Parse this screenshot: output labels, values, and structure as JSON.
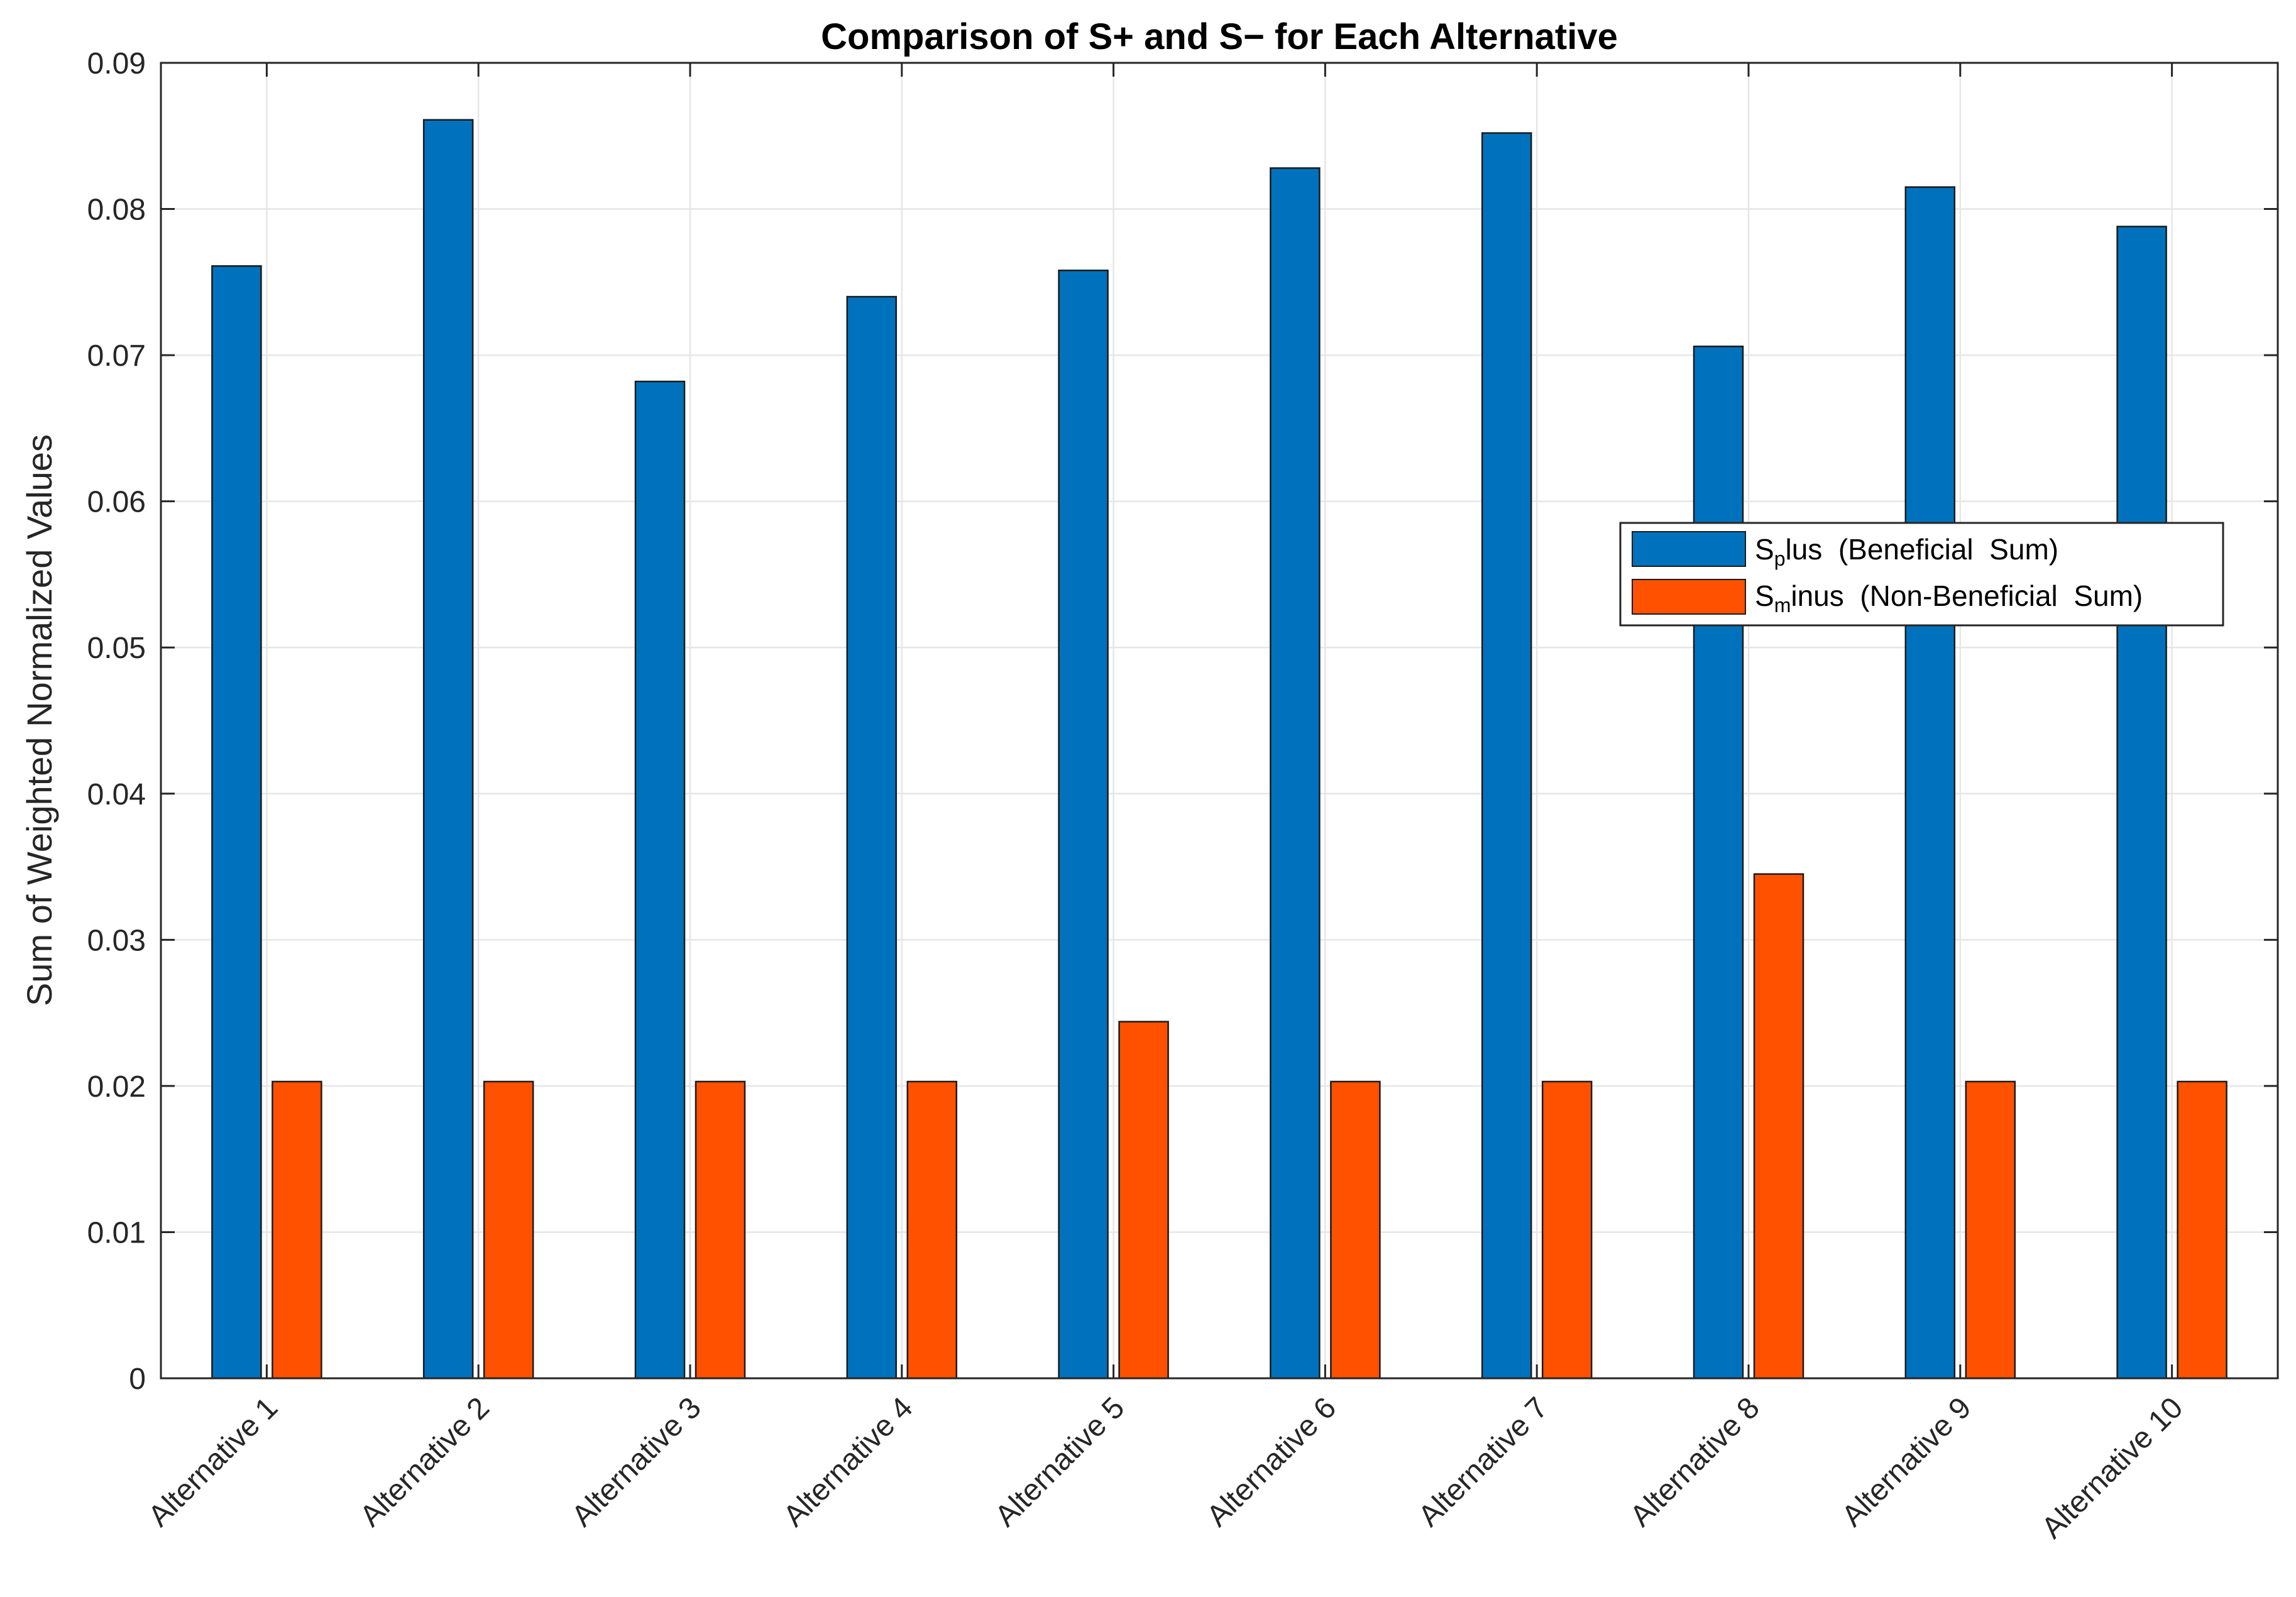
{
  "chart_data": {
    "type": "bar",
    "title": "Comparison of S+ and S− for Each Alternative",
    "xlabel": "",
    "ylabel": "Sum of Weighted Normalized Values",
    "ylim": [
      0,
      0.09
    ],
    "yticks": [
      "0",
      "0.01",
      "0.02",
      "0.03",
      "0.04",
      "0.05",
      "0.06",
      "0.07",
      "0.08",
      "0.09"
    ],
    "ytick_values": [
      0,
      0.01,
      0.02,
      0.03,
      0.04,
      0.05,
      0.06,
      0.07,
      0.08,
      0.09
    ],
    "grid": true,
    "categories": [
      "Alternative 1",
      "Alternative 2",
      "Alternative 3",
      "Alternative 4",
      "Alternative 5",
      "Alternative 6",
      "Alternative 7",
      "Alternative 8",
      "Alternative 9",
      "Alternative 10"
    ],
    "series": [
      {
        "name": "Splus (Beneficial Sum)",
        "legend_main": "S",
        "legend_sub": "p",
        "legend_rest": "lus  (Beneficial  Sum)",
        "color": "#0072bd",
        "values": [
          0.0761,
          0.0861,
          0.0682,
          0.074,
          0.0758,
          0.0828,
          0.0852,
          0.0706,
          0.0815,
          0.0788
        ]
      },
      {
        "name": "Sminus (Non-Beneficial Sum)",
        "legend_main": "S",
        "legend_sub": "m",
        "legend_rest": "inus  (Non-Beneficial  Sum)",
        "color": "#ff5100",
        "values": [
          0.0203,
          0.0203,
          0.0203,
          0.0203,
          0.0244,
          0.0203,
          0.0203,
          0.0345,
          0.0203,
          0.0203
        ]
      }
    ],
    "legend_position": "right"
  }
}
